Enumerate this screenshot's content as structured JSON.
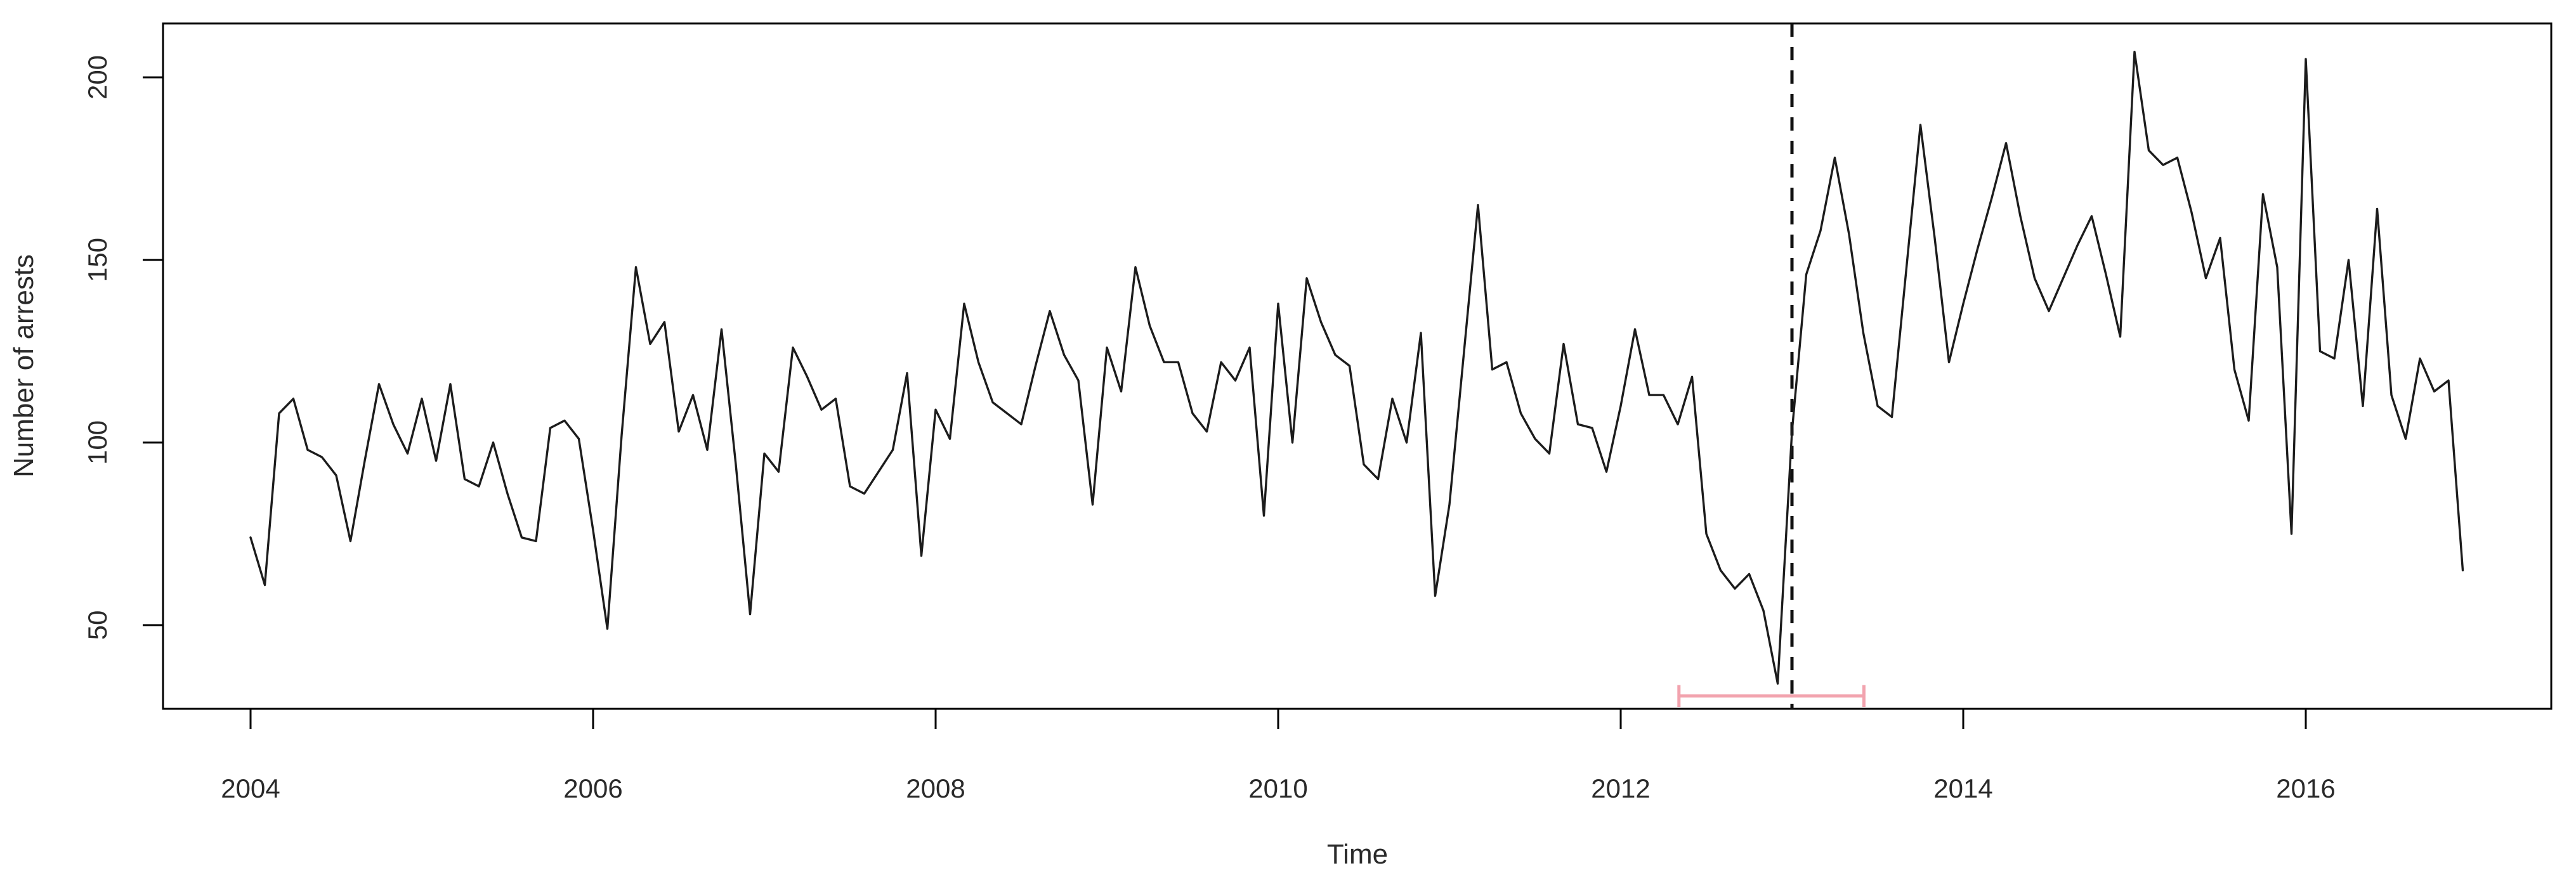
{
  "chart_data": {
    "type": "line",
    "title": "",
    "xlabel": "Time",
    "ylabel": "Number of arrests",
    "x_ticks": [
      2004,
      2006,
      2008,
      2010,
      2012,
      2014,
      2016
    ],
    "y_ticks": [
      50,
      100,
      150,
      200
    ],
    "x_range": [
      2004.0,
      2017.0
    ],
    "ylim": [
      28,
      212
    ],
    "grid": false,
    "legend": "none",
    "series": [
      {
        "name": "arrests",
        "start_year": 2004,
        "frequency": "monthly",
        "values": [
          74,
          61,
          108,
          112,
          98,
          96,
          91,
          73,
          95,
          116,
          105,
          97,
          112,
          95,
          116,
          90,
          88,
          100,
          86,
          74,
          73,
          104,
          106,
          101,
          76,
          49,
          102,
          148,
          127,
          133,
          103,
          113,
          98,
          131,
          94,
          53,
          97,
          92,
          126,
          118,
          109,
          112,
          88,
          86,
          92,
          98,
          119,
          69,
          109,
          101,
          138,
          122,
          111,
          108,
          105,
          121,
          136,
          124,
          117,
          83,
          126,
          114,
          148,
          132,
          122,
          122,
          108,
          103,
          122,
          117,
          126,
          80,
          138,
          100,
          145,
          133,
          124,
          121,
          94,
          90,
          112,
          100,
          130,
          58,
          83,
          124,
          165,
          120,
          122,
          108,
          101,
          97,
          127,
          105,
          104,
          92,
          110,
          131,
          113,
          113,
          105,
          118,
          75,
          65,
          60,
          64,
          54,
          34,
          103,
          146,
          158,
          178,
          157,
          130,
          110,
          107,
          147,
          187,
          156,
          122,
          138,
          153,
          167,
          182,
          162,
          145,
          136,
          145,
          154,
          162,
          146,
          129,
          207,
          180,
          176,
          178,
          163,
          145,
          156,
          120,
          106,
          168,
          148,
          75,
          205,
          125,
          123,
          150,
          110,
          164,
          113,
          101,
          123,
          114,
          117,
          65
        ]
      }
    ],
    "annotations": {
      "dashed_vline_year": 2013.0,
      "bracket": {
        "x_start_year": 2012.34,
        "x_end_year": 2013.42,
        "y_value": 30.6,
        "cap_half_value": 3.0
      }
    },
    "colors": {
      "line": "#1c1c1c",
      "axis": "#000000",
      "dashed_line": "#111111",
      "bracket": "#f2a3ae",
      "text": "#2a2a2a"
    }
  }
}
